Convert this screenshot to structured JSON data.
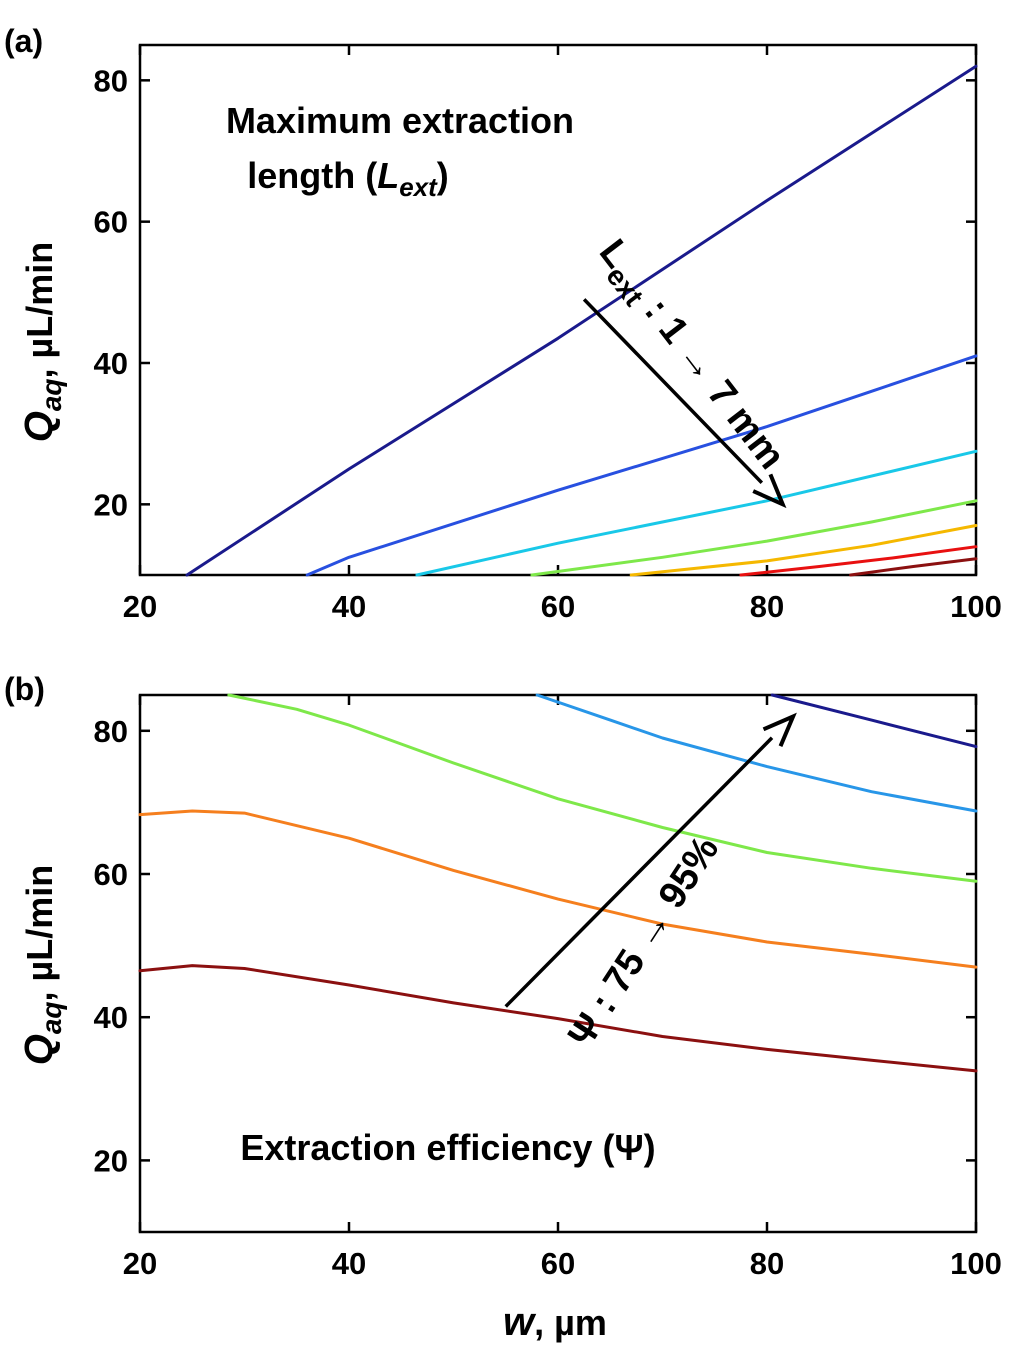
{
  "chart_data": [
    {
      "type": "line",
      "subtype": "contour",
      "panel_label": "(a)",
      "annotation": {
        "text": "Maximum extraction",
        "line2_prefix": "length (",
        "symbol": "L",
        "symbol_sub": "ext",
        "line2_suffix": ")"
      },
      "contour_label": {
        "prefix": "L",
        "sub": "ext",
        "suffix": " : 1 → 7 mm"
      },
      "xlabel": "",
      "ylabel": {
        "symbol": "Q",
        "sub": "aq",
        "unit": ", µL/min"
      },
      "xlim": [
        20,
        100
      ],
      "ylim": [
        10,
        85
      ],
      "xticks": [
        "20",
        "40",
        "60",
        "80",
        "100"
      ],
      "yticks": [
        "20",
        "40",
        "60",
        "80"
      ],
      "series": [
        {
          "level": 1,
          "color": "#1a1a8c",
          "points": [
            [
              24.5,
              10
            ],
            [
              40,
              25
            ],
            [
              60,
              43.5
            ],
            [
              80,
              63
            ],
            [
              100,
              82
            ]
          ]
        },
        {
          "level": 2,
          "color": "#2850e0",
          "points": [
            [
              36,
              10
            ],
            [
              40,
              12.5
            ],
            [
              60,
              22
            ],
            [
              80,
              31
            ],
            [
              90,
              36
            ],
            [
              100,
              41
            ]
          ]
        },
        {
          "level": 3,
          "color": "#19c8e8",
          "points": [
            [
              46.5,
              10
            ],
            [
              60,
              14.5
            ],
            [
              80,
              20.5
            ],
            [
              100,
              27.5
            ]
          ]
        },
        {
          "level": 4,
          "color": "#7ee84a",
          "points": [
            [
              57.5,
              10
            ],
            [
              70,
              12.5
            ],
            [
              80,
              14.8
            ],
            [
              90,
              17.5
            ],
            [
              100,
              20.5
            ]
          ]
        },
        {
          "level": 5,
          "color": "#f5b800",
          "points": [
            [
              67,
              10
            ],
            [
              80,
              12
            ],
            [
              90,
              14.2
            ],
            [
              100,
              17
            ]
          ]
        },
        {
          "level": 6,
          "color": "#e81010",
          "points": [
            [
              77.5,
              10
            ],
            [
              85,
              11.2
            ],
            [
              92,
              12.4
            ],
            [
              100,
              14
            ]
          ]
        },
        {
          "level": 7,
          "color": "#8b1010",
          "points": [
            [
              88,
              10
            ],
            [
              94,
              11.2
            ],
            [
              100,
              12.3
            ]
          ]
        }
      ],
      "arrow": {
        "from": [
          62.5,
          49
        ],
        "to": [
          81.5,
          20
        ]
      }
    },
    {
      "type": "line",
      "subtype": "contour",
      "panel_label": "(b)",
      "annotation": {
        "text": "Extraction efficiency (Ψ)"
      },
      "contour_label": {
        "text": "Ψ : 75 → 95%"
      },
      "xlabel": {
        "symbol": "w",
        "unit": ", µm"
      },
      "ylabel": {
        "symbol": "Q",
        "sub": "aq",
        "unit": ", µL/min"
      },
      "xlim": [
        20,
        100
      ],
      "ylim": [
        10,
        85
      ],
      "xticks": [
        "20",
        "40",
        "60",
        "80",
        "100"
      ],
      "yticks": [
        "20",
        "40",
        "60",
        "80"
      ],
      "series": [
        {
          "level": 75,
          "color": "#8b1010",
          "points": [
            [
              20,
              46.5
            ],
            [
              25,
              47.2
            ],
            [
              30,
              46.8
            ],
            [
              40,
              44.5
            ],
            [
              50,
              42
            ],
            [
              60,
              39.8
            ],
            [
              70,
              37.3
            ],
            [
              80,
              35.5
            ],
            [
              90,
              34
            ],
            [
              100,
              32.5
            ]
          ]
        },
        {
          "level": 80,
          "color": "#f57f1e",
          "points": [
            [
              20,
              68.3
            ],
            [
              25,
              68.8
            ],
            [
              30,
              68.5
            ],
            [
              40,
              65
            ],
            [
              50,
              60.5
            ],
            [
              60,
              56.5
            ],
            [
              70,
              53
            ],
            [
              80,
              50.5
            ],
            [
              90,
              48.8
            ],
            [
              100,
              47
            ]
          ]
        },
        {
          "level": 85,
          "color": "#7ee84a",
          "points": [
            [
              28.5,
              85
            ],
            [
              35,
              83
            ],
            [
              40,
              80.8
            ],
            [
              50,
              75.5
            ],
            [
              60,
              70.5
            ],
            [
              70,
              66.5
            ],
            [
              80,
              63
            ],
            [
              90,
              60.8
            ],
            [
              100,
              59
            ]
          ]
        },
        {
          "level": 90,
          "color": "#2896e8",
          "points": [
            [
              58,
              85
            ],
            [
              65,
              81.5
            ],
            [
              70,
              79
            ],
            [
              80,
              75
            ],
            [
              90,
              71.5
            ],
            [
              100,
              68.8
            ]
          ]
        },
        {
          "level": 95,
          "color": "#1a1a8c",
          "points": [
            [
              80.5,
              85
            ],
            [
              90,
              81.5
            ],
            [
              100,
              77.8
            ]
          ]
        }
      ],
      "arrow": {
        "from": [
          55,
          41.5
        ],
        "to": [
          82.5,
          82
        ]
      }
    }
  ]
}
